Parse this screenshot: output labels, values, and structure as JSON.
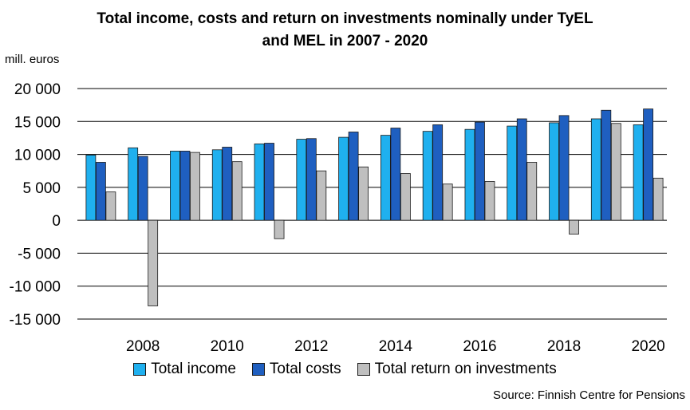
{
  "title_line1": "Total income, costs and return on investments nominally under TyEL",
  "title_line2": "and MEL in 2007 - 2020",
  "unit_label": "mill. euros",
  "source": "Source: Finnish Centre for Pensions",
  "chart_data": {
    "type": "bar",
    "title": "Total income, costs and return on investments nominally under TyEL and MEL in 2007 - 2020",
    "ylabel": "mill. euros",
    "categories": [
      "2007",
      "2008",
      "2009",
      "2010",
      "2011",
      "2012",
      "2013",
      "2014",
      "2015",
      "2016",
      "2017",
      "2018",
      "2019",
      "2020"
    ],
    "x_tick_labels": [
      "",
      "2008",
      "",
      "2010",
      "",
      "2012",
      "",
      "2014",
      "",
      "2016",
      "",
      "2018",
      "",
      "2020"
    ],
    "y_ticks": [
      20000,
      15000,
      10000,
      5000,
      0,
      -5000,
      -10000,
      -15000
    ],
    "y_tick_labels": [
      "20 000",
      "15 000",
      "10 000",
      "5 000",
      "0",
      "-5 000",
      "-10 000",
      "-15 000"
    ],
    "ylim": [
      -15000,
      20000
    ],
    "grid": true,
    "legend_position": "bottom",
    "series": [
      {
        "name": "Total income",
        "color": "#1fb0ef",
        "values": [
          9900,
          11000,
          10500,
          10700,
          11600,
          12300,
          12600,
          12900,
          13500,
          13800,
          14300,
          14800,
          15400,
          14500
        ]
      },
      {
        "name": "Total costs",
        "color": "#1f5fc0",
        "values": [
          8800,
          9700,
          10500,
          11100,
          11700,
          12400,
          13400,
          14000,
          14500,
          14900,
          15400,
          15900,
          16700,
          16900
        ]
      },
      {
        "name": "Total return on investments",
        "color": "#bfbfbf",
        "values": [
          4300,
          -13000,
          10300,
          8900,
          -2800,
          7500,
          8100,
          7100,
          5500,
          5900,
          8800,
          -2100,
          14700,
          6400
        ]
      }
    ]
  }
}
